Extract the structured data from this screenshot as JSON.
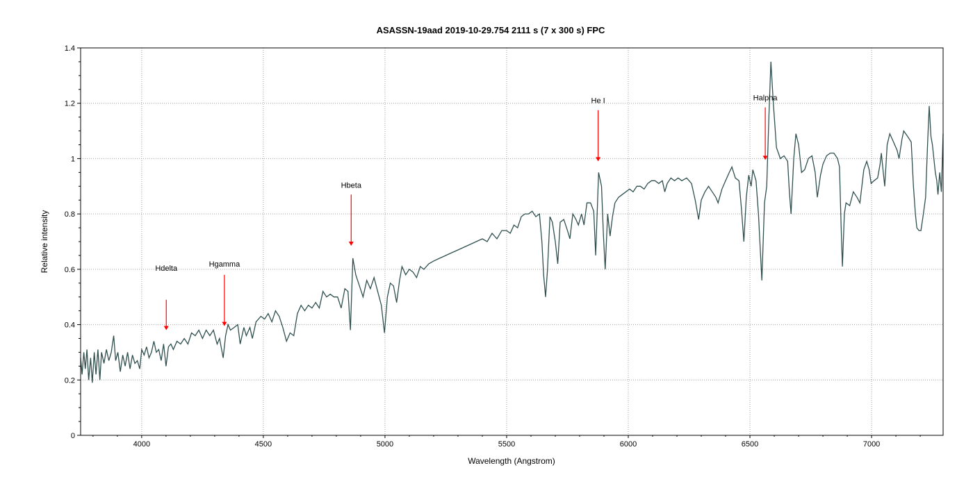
{
  "chart_data": {
    "type": "line",
    "title": "ASASSN-19aad   2019-10-29.754   2111 s (7 x 300 s)   FPC",
    "xlabel": "Wavelength (Angstrom)",
    "ylabel": "Relative intensity",
    "xlim": [
      3749,
      7294
    ],
    "ylim": [
      0,
      1.4
    ],
    "grid": true,
    "xticks": [
      4000,
      4500,
      5000,
      5500,
      6000,
      6500,
      7000
    ],
    "xtick_labels": [
      "4000",
      "4500",
      "5000",
      "5500",
      "6000",
      "6500",
      "7000"
    ],
    "yticks": [
      0,
      0.2,
      0.4,
      0.6,
      0.8,
      1.0,
      1.2,
      1.4
    ],
    "ytick_labels": [
      "0",
      "0.2",
      "0.4",
      "0.6",
      "0.8",
      "1",
      "1.2",
      "1.4"
    ],
    "line_color": "#2f4f4f",
    "annotation_color": "#ff0000",
    "series": [
      {
        "name": "spectrum",
        "points": [
          [
            3749,
            0.28
          ],
          [
            3755,
            0.22
          ],
          [
            3762,
            0.3
          ],
          [
            3768,
            0.24
          ],
          [
            3775,
            0.31
          ],
          [
            3782,
            0.2
          ],
          [
            3790,
            0.28
          ],
          [
            3797,
            0.19
          ],
          [
            3805,
            0.3
          ],
          [
            3812,
            0.22
          ],
          [
            3820,
            0.31
          ],
          [
            3828,
            0.2
          ],
          [
            3835,
            0.3
          ],
          [
            3845,
            0.26
          ],
          [
            3855,
            0.31
          ],
          [
            3865,
            0.27
          ],
          [
            3875,
            0.3
          ],
          [
            3885,
            0.36
          ],
          [
            3893,
            0.27
          ],
          [
            3902,
            0.3
          ],
          [
            3912,
            0.23
          ],
          [
            3922,
            0.29
          ],
          [
            3932,
            0.25
          ],
          [
            3942,
            0.3
          ],
          [
            3952,
            0.24
          ],
          [
            3962,
            0.29
          ],
          [
            3972,
            0.26
          ],
          [
            3982,
            0.27
          ],
          [
            3992,
            0.24
          ],
          [
            4000,
            0.31
          ],
          [
            4010,
            0.29
          ],
          [
            4020,
            0.32
          ],
          [
            4030,
            0.28
          ],
          [
            4040,
            0.3
          ],
          [
            4050,
            0.34
          ],
          [
            4060,
            0.3
          ],
          [
            4070,
            0.31
          ],
          [
            4080,
            0.27
          ],
          [
            4090,
            0.33
          ],
          [
            4100,
            0.25
          ],
          [
            4110,
            0.32
          ],
          [
            4120,
            0.33
          ],
          [
            4130,
            0.31
          ],
          [
            4145,
            0.34
          ],
          [
            4160,
            0.33
          ],
          [
            4175,
            0.35
          ],
          [
            4190,
            0.33
          ],
          [
            4205,
            0.37
          ],
          [
            4220,
            0.36
          ],
          [
            4235,
            0.38
          ],
          [
            4250,
            0.35
          ],
          [
            4265,
            0.38
          ],
          [
            4280,
            0.36
          ],
          [
            4295,
            0.38
          ],
          [
            4310,
            0.33
          ],
          [
            4320,
            0.35
          ],
          [
            4335,
            0.28
          ],
          [
            4345,
            0.36
          ],
          [
            4355,
            0.4
          ],
          [
            4365,
            0.38
          ],
          [
            4380,
            0.39
          ],
          [
            4395,
            0.4
          ],
          [
            4405,
            0.33
          ],
          [
            4420,
            0.39
          ],
          [
            4430,
            0.36
          ],
          [
            4445,
            0.39
          ],
          [
            4455,
            0.35
          ],
          [
            4470,
            0.41
          ],
          [
            4490,
            0.43
          ],
          [
            4505,
            0.42
          ],
          [
            4520,
            0.44
          ],
          [
            4535,
            0.41
          ],
          [
            4550,
            0.45
          ],
          [
            4565,
            0.43
          ],
          [
            4580,
            0.39
          ],
          [
            4595,
            0.34
          ],
          [
            4610,
            0.37
          ],
          [
            4625,
            0.36
          ],
          [
            4640,
            0.44
          ],
          [
            4655,
            0.47
          ],
          [
            4670,
            0.45
          ],
          [
            4685,
            0.47
          ],
          [
            4700,
            0.46
          ],
          [
            4715,
            0.48
          ],
          [
            4730,
            0.46
          ],
          [
            4745,
            0.52
          ],
          [
            4760,
            0.5
          ],
          [
            4775,
            0.51
          ],
          [
            4790,
            0.5
          ],
          [
            4805,
            0.5
          ],
          [
            4820,
            0.46
          ],
          [
            4835,
            0.53
          ],
          [
            4848,
            0.52
          ],
          [
            4858,
            0.38
          ],
          [
            4868,
            0.64
          ],
          [
            4880,
            0.58
          ],
          [
            4895,
            0.54
          ],
          [
            4910,
            0.5
          ],
          [
            4925,
            0.56
          ],
          [
            4940,
            0.53
          ],
          [
            4955,
            0.57
          ],
          [
            4970,
            0.52
          ],
          [
            4985,
            0.47
          ],
          [
            4998,
            0.37
          ],
          [
            5010,
            0.5
          ],
          [
            5022,
            0.55
          ],
          [
            5035,
            0.54
          ],
          [
            5048,
            0.48
          ],
          [
            5060,
            0.56
          ],
          [
            5070,
            0.61
          ],
          [
            5085,
            0.58
          ],
          [
            5100,
            0.6
          ],
          [
            5115,
            0.59
          ],
          [
            5130,
            0.57
          ],
          [
            5145,
            0.61
          ],
          [
            5160,
            0.6
          ],
          [
            5180,
            0.62
          ],
          [
            5200,
            0.63
          ],
          [
            5225,
            0.64
          ],
          [
            5250,
            0.65
          ],
          [
            5275,
            0.66
          ],
          [
            5300,
            0.67
          ],
          [
            5325,
            0.68
          ],
          [
            5350,
            0.69
          ],
          [
            5375,
            0.7
          ],
          [
            5400,
            0.71
          ],
          [
            5420,
            0.7
          ],
          [
            5440,
            0.73
          ],
          [
            5460,
            0.71
          ],
          [
            5480,
            0.74
          ],
          [
            5500,
            0.74
          ],
          [
            5515,
            0.73
          ],
          [
            5530,
            0.76
          ],
          [
            5545,
            0.75
          ],
          [
            5560,
            0.79
          ],
          [
            5575,
            0.8
          ],
          [
            5590,
            0.8
          ],
          [
            5605,
            0.81
          ],
          [
            5620,
            0.79
          ],
          [
            5635,
            0.8
          ],
          [
            5645,
            0.7
          ],
          [
            5652,
            0.58
          ],
          [
            5660,
            0.5
          ],
          [
            5668,
            0.6
          ],
          [
            5678,
            0.79
          ],
          [
            5688,
            0.77
          ],
          [
            5700,
            0.7
          ],
          [
            5710,
            0.62
          ],
          [
            5720,
            0.77
          ],
          [
            5735,
            0.78
          ],
          [
            5750,
            0.74
          ],
          [
            5760,
            0.71
          ],
          [
            5772,
            0.8
          ],
          [
            5785,
            0.78
          ],
          [
            5795,
            0.76
          ],
          [
            5808,
            0.8
          ],
          [
            5818,
            0.76
          ],
          [
            5830,
            0.84
          ],
          [
            5845,
            0.84
          ],
          [
            5858,
            0.81
          ],
          [
            5866,
            0.65
          ],
          [
            5878,
            0.95
          ],
          [
            5890,
            0.9
          ],
          [
            5898,
            0.72
          ],
          [
            5905,
            0.6
          ],
          [
            5915,
            0.8
          ],
          [
            5925,
            0.72
          ],
          [
            5935,
            0.79
          ],
          [
            5945,
            0.84
          ],
          [
            5960,
            0.86
          ],
          [
            5975,
            0.87
          ],
          [
            5990,
            0.88
          ],
          [
            6005,
            0.89
          ],
          [
            6020,
            0.88
          ],
          [
            6035,
            0.9
          ],
          [
            6050,
            0.9
          ],
          [
            6065,
            0.89
          ],
          [
            6080,
            0.91
          ],
          [
            6095,
            0.92
          ],
          [
            6110,
            0.92
          ],
          [
            6125,
            0.91
          ],
          [
            6140,
            0.92
          ],
          [
            6150,
            0.88
          ],
          [
            6160,
            0.91
          ],
          [
            6175,
            0.93
          ],
          [
            6190,
            0.92
          ],
          [
            6205,
            0.93
          ],
          [
            6220,
            0.92
          ],
          [
            6240,
            0.93
          ],
          [
            6260,
            0.91
          ],
          [
            6275,
            0.85
          ],
          [
            6289,
            0.78
          ],
          [
            6300,
            0.85
          ],
          [
            6315,
            0.88
          ],
          [
            6330,
            0.9
          ],
          [
            6345,
            0.88
          ],
          [
            6360,
            0.86
          ],
          [
            6369,
            0.84
          ],
          [
            6385,
            0.89
          ],
          [
            6400,
            0.92
          ],
          [
            6415,
            0.95
          ],
          [
            6426,
            0.97
          ],
          [
            6440,
            0.93
          ],
          [
            6455,
            0.92
          ],
          [
            6465,
            0.82
          ],
          [
            6475,
            0.7
          ],
          [
            6485,
            0.86
          ],
          [
            6495,
            0.94
          ],
          [
            6505,
            0.9
          ],
          [
            6512,
            0.96
          ],
          [
            6525,
            0.92
          ],
          [
            6535,
            0.8
          ],
          [
            6549,
            0.56
          ],
          [
            6560,
            0.84
          ],
          [
            6569,
            0.9
          ],
          [
            6578,
            1.15
          ],
          [
            6586,
            1.35
          ],
          [
            6596,
            1.2
          ],
          [
            6609,
            1.04
          ],
          [
            6625,
            1.0
          ],
          [
            6640,
            1.01
          ],
          [
            6655,
            0.99
          ],
          [
            6662,
            0.88
          ],
          [
            6669,
            0.8
          ],
          [
            6680,
            1.0
          ],
          [
            6689,
            1.09
          ],
          [
            6700,
            1.05
          ],
          [
            6712,
            0.95
          ],
          [
            6725,
            0.96
          ],
          [
            6740,
            1.0
          ],
          [
            6755,
            1.01
          ],
          [
            6768,
            0.95
          ],
          [
            6777,
            0.86
          ],
          [
            6790,
            0.94
          ],
          [
            6800,
            0.98
          ],
          [
            6815,
            1.01
          ],
          [
            6830,
            1.02
          ],
          [
            6845,
            1.02
          ],
          [
            6860,
            1.0
          ],
          [
            6868,
            0.97
          ],
          [
            6875,
            0.75
          ],
          [
            6880,
            0.61
          ],
          [
            6888,
            0.8
          ],
          [
            6895,
            0.84
          ],
          [
            6910,
            0.83
          ],
          [
            6925,
            0.88
          ],
          [
            6940,
            0.86
          ],
          [
            6952,
            0.84
          ],
          [
            6968,
            0.96
          ],
          [
            6980,
            0.99
          ],
          [
            6990,
            0.96
          ],
          [
            6998,
            0.91
          ],
          [
            7010,
            0.92
          ],
          [
            7025,
            0.93
          ],
          [
            7035,
            0.98
          ],
          [
            7040,
            1.02
          ],
          [
            7048,
            0.95
          ],
          [
            7054,
            0.9
          ],
          [
            7064,
            1.05
          ],
          [
            7075,
            1.09
          ],
          [
            7090,
            1.06
          ],
          [
            7105,
            1.03
          ],
          [
            7113,
            1.0
          ],
          [
            7125,
            1.07
          ],
          [
            7132,
            1.1
          ],
          [
            7148,
            1.08
          ],
          [
            7163,
            1.06
          ],
          [
            7172,
            0.9
          ],
          [
            7180,
            0.8
          ],
          [
            7186,
            0.75
          ],
          [
            7195,
            0.74
          ],
          [
            7203,
            0.74
          ],
          [
            7213,
            0.8
          ],
          [
            7222,
            0.86
          ],
          [
            7230,
            1.05
          ],
          [
            7237,
            1.19
          ],
          [
            7244,
            1.08
          ],
          [
            7250,
            1.05
          ],
          [
            7262,
            0.95
          ],
          [
            7268,
            0.92
          ],
          [
            7273,
            0.87
          ],
          [
            7280,
            0.95
          ],
          [
            7287,
            0.88
          ],
          [
            7294,
            1.09
          ]
        ]
      }
    ],
    "annotations": [
      {
        "label": "Hdelta",
        "x": 4101,
        "label_y": 0.595,
        "arrow_from": 0.49,
        "arrow_to": 0.38
      },
      {
        "label": "Hgamma",
        "x": 4340,
        "label_y": 0.61,
        "arrow_from": 0.58,
        "arrow_to": 0.395
      },
      {
        "label": "Hbeta",
        "x": 4861,
        "label_y": 0.895,
        "arrow_from": 0.87,
        "arrow_to": 0.685
      },
      {
        "label": "He I",
        "x": 5876,
        "label_y": 1.2,
        "arrow_from": 1.175,
        "arrow_to": 0.99
      },
      {
        "label": "Halpha",
        "x": 6563,
        "label_y": 1.21,
        "arrow_from": 1.185,
        "arrow_to": 0.995
      }
    ]
  }
}
